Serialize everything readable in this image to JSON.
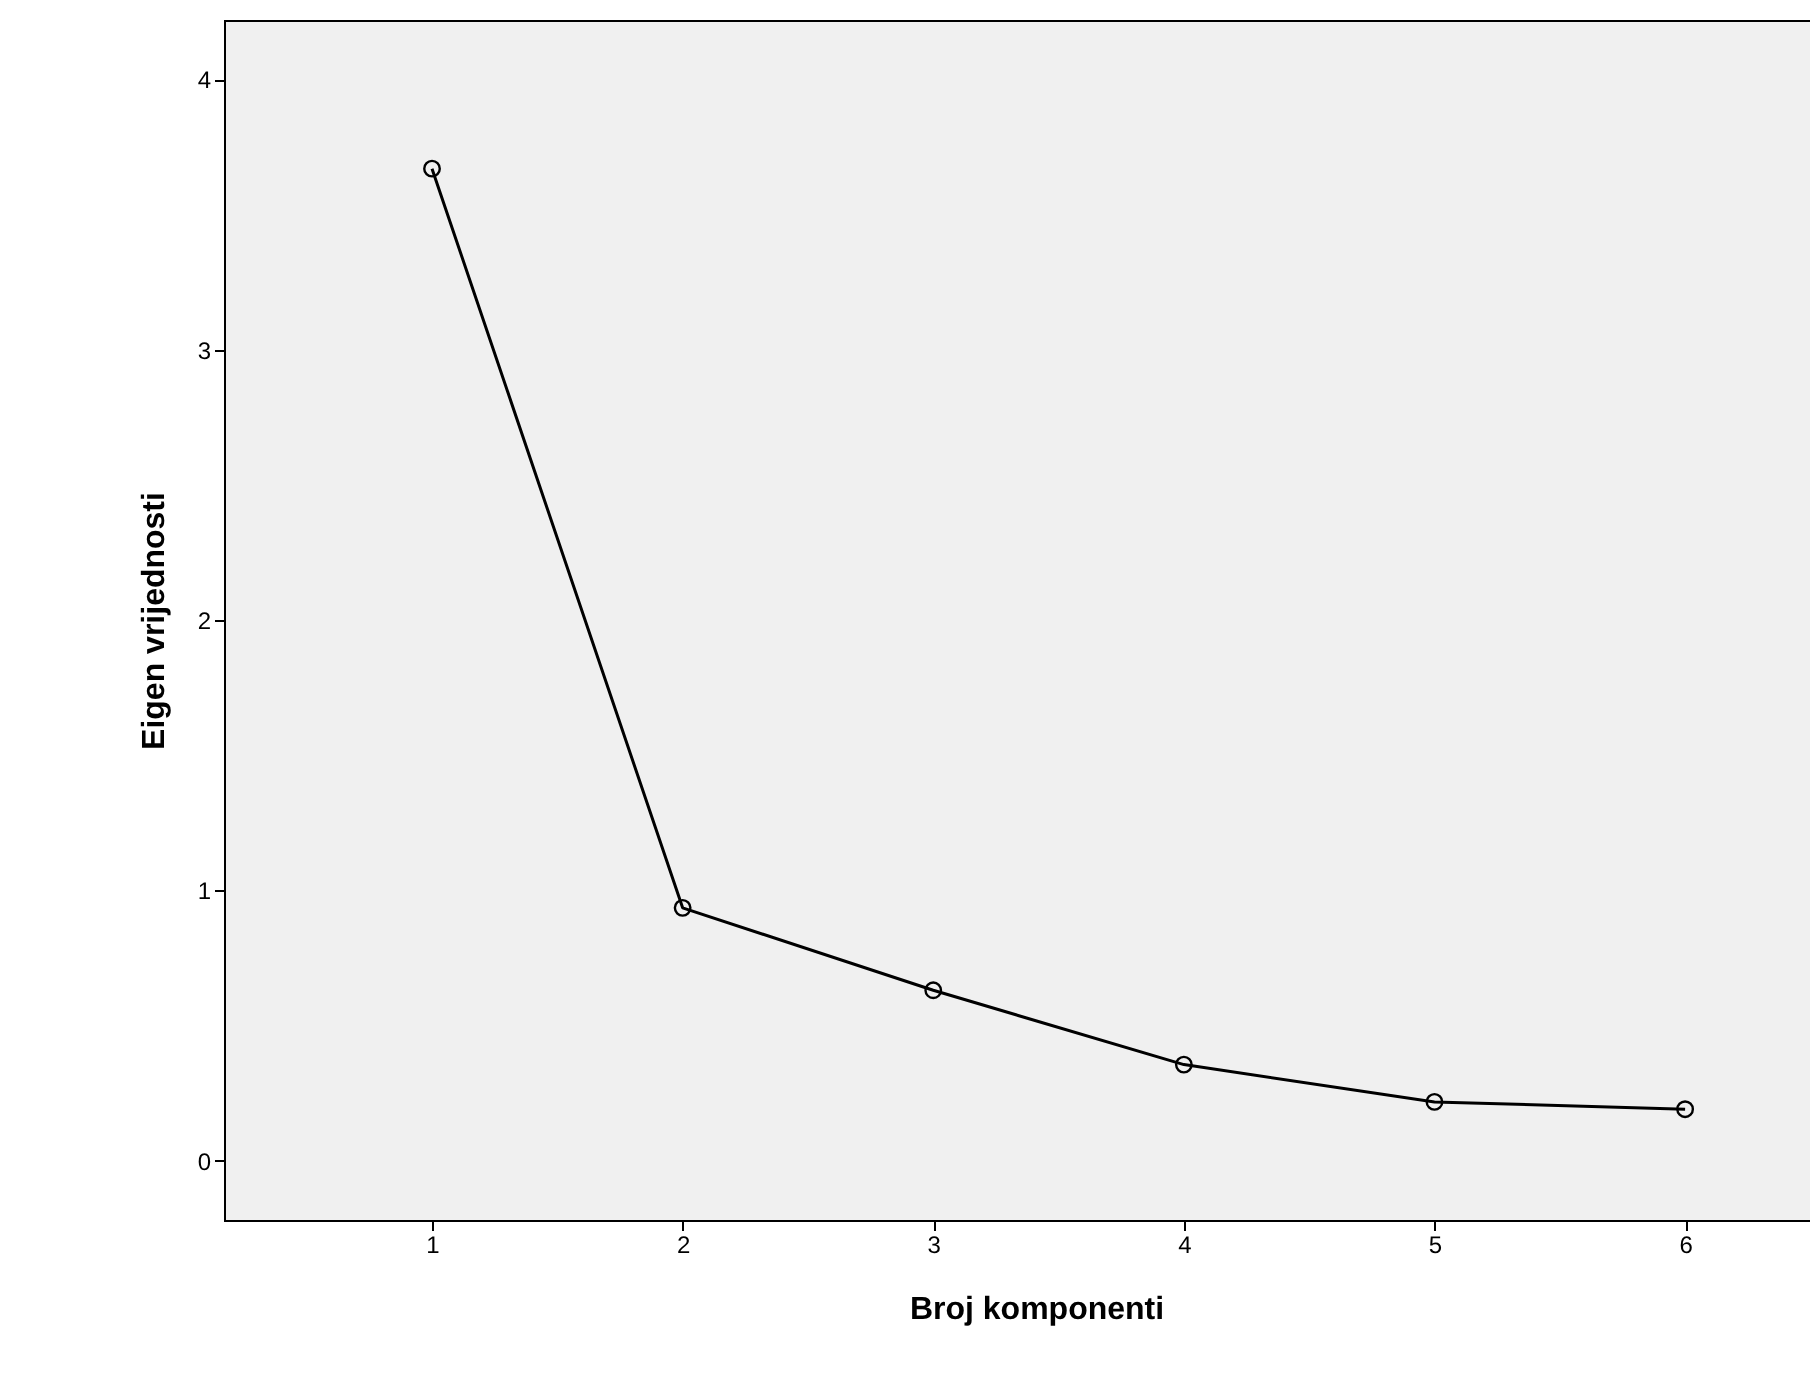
{
  "chart_data": {
    "type": "line",
    "xlabel": "Broj komponenti",
    "ylabel": "Eigen vrijednosti",
    "x": [
      1,
      2,
      3,
      4,
      5,
      6
    ],
    "values": [
      3.67,
      0.935,
      0.63,
      0.355,
      0.217,
      0.19
    ],
    "color": "#000000",
    "xlim": [
      0.17,
      6.65
    ],
    "xticks": [
      1,
      2,
      3,
      4,
      5,
      6
    ],
    "ylim": [
      -0.22,
      4.22
    ],
    "yticks": [
      0,
      1,
      2,
      3,
      4
    ],
    "grid": false,
    "marker": "circle",
    "line_style": "solid"
  }
}
